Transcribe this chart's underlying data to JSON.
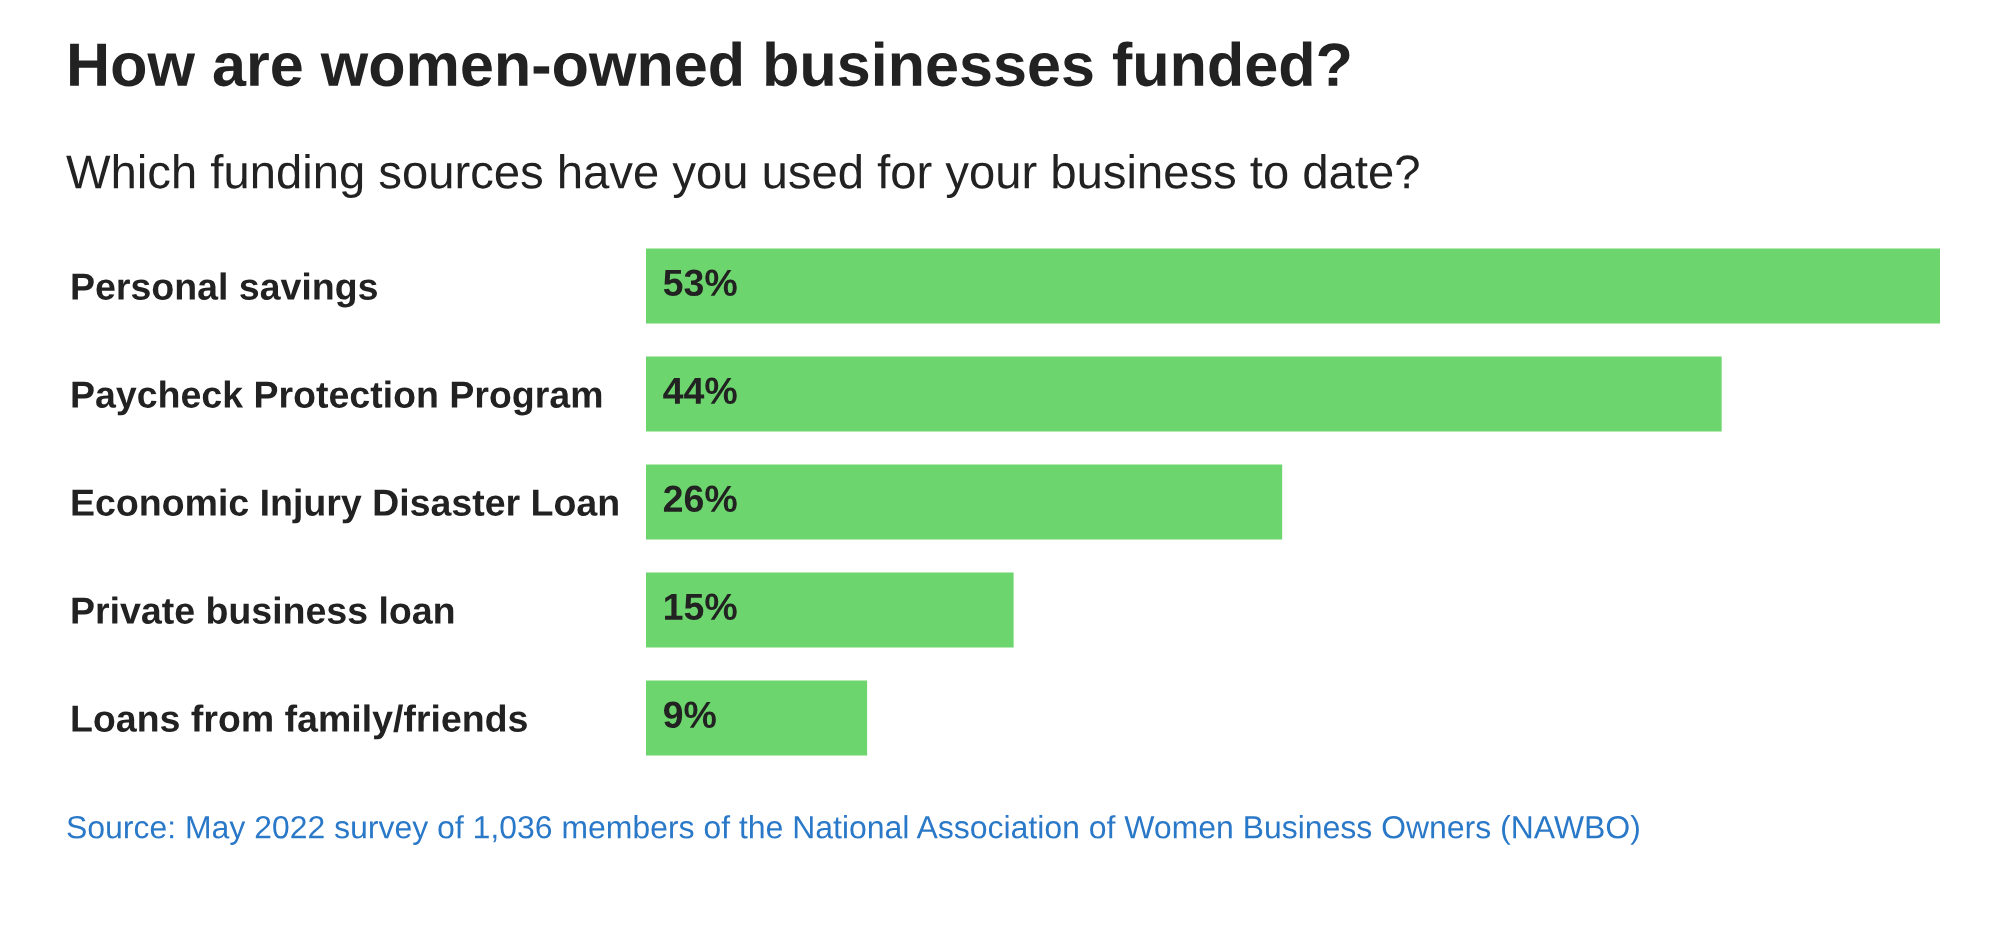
{
  "chart_data": {
    "type": "bar",
    "orientation": "horizontal",
    "title": "How are women-owned businesses funded?",
    "subtitle": "Which funding sources have you used for your business to date?",
    "categories": [
      "Personal savings",
      "Paycheck Protection Program",
      "Economic Injury Disaster Loan",
      "Private business loan",
      "Loans from family/friends"
    ],
    "values": [
      53,
      44,
      26,
      15,
      9
    ],
    "color": "#6dd56d",
    "value_labels": [
      "53%",
      "44%",
      "26%",
      "15%",
      "9%"
    ],
    "annotations": [
      "Source: May 2022 survey of 1,036 members of the National Association of Women Business Owners (NAWBO)"
    ]
  }
}
